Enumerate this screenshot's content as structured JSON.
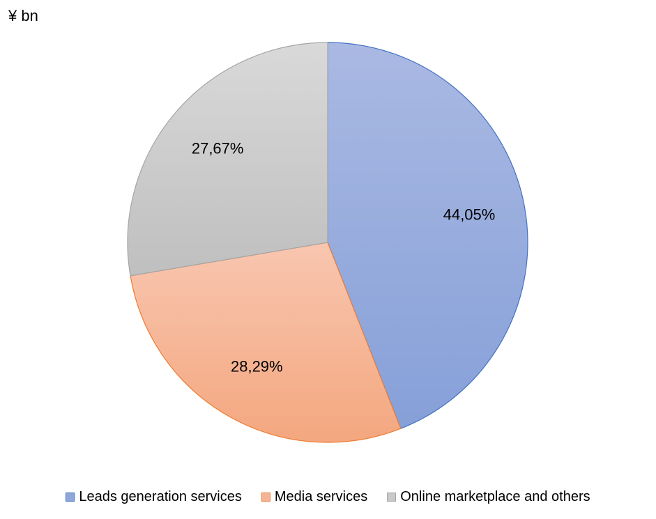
{
  "chart_data": {
    "type": "pie",
    "unit_label": "¥ bn",
    "start_angle": "top",
    "direction": "clockwise",
    "slices": [
      {
        "label": "Leads generation services",
        "value": 44.05,
        "display": "44,05%",
        "color": "#8fa6da",
        "gradient_top": "#aab9e3",
        "gradient_bottom": "#86a0d8",
        "stroke": "#4472c4"
      },
      {
        "label": "Media services",
        "value": 28.29,
        "display": "28,29%",
        "color": "#f6b496",
        "gradient_top": "#f8c6b0",
        "gradient_bottom": "#f4a77f",
        "stroke": "#ed7d31"
      },
      {
        "label": "Online marketplace and others",
        "value": 27.67,
        "display": "27,67%",
        "color": "#c9c9c9",
        "gradient_top": "#d9d9d9",
        "gradient_bottom": "#bfbfbf",
        "stroke": "#a5a5a5"
      }
    ],
    "legend_position": "bottom"
  }
}
